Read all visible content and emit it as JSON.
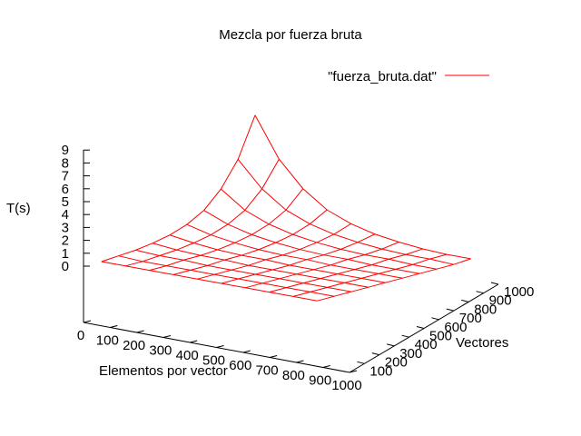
{
  "chart_data": {
    "type": "surface",
    "title": "Mezcla por fuerza bruta",
    "xlabel": "Elementos por vector",
    "ylabel": "Vectores",
    "zlabel": "T(s)",
    "legend_position": "top-right",
    "series": [
      {
        "name": "\"fuerza_bruta.dat\"",
        "color": "#ff0000"
      }
    ],
    "x_ticks": [
      "0",
      "100",
      "200",
      "300",
      "400",
      "500",
      "600",
      "700",
      "800",
      "900",
      "1000"
    ],
    "y_ticks": [
      "100",
      "200",
      "300",
      "400",
      "500",
      "600",
      "700",
      "800",
      "900",
      "1000"
    ],
    "z_ticks": [
      "0",
      "1",
      "2",
      "3",
      "4",
      "5",
      "6",
      "7",
      "8",
      "9"
    ],
    "xlim": [
      0,
      1000
    ],
    "ylim": [
      100,
      1000
    ],
    "zlim": [
      0,
      9
    ],
    "grid": false,
    "x": [
      100,
      200,
      300,
      400,
      500,
      600,
      700,
      800,
      900,
      1000
    ],
    "y": [
      100,
      200,
      300,
      400,
      500,
      600,
      700,
      800,
      900,
      1000
    ],
    "z": [
      [
        0.0,
        0.0,
        0.0,
        0.0,
        0.0,
        0.0,
        0.0,
        0.0,
        0.0,
        0.0
      ],
      [
        0.0,
        0.0,
        0.0,
        0.0,
        0.0,
        0.0,
        0.0,
        0.0,
        0.0,
        0.1
      ],
      [
        0.0,
        0.0,
        0.0,
        0.0,
        0.0,
        0.0,
        0.0,
        0.1,
        0.1,
        0.2
      ],
      [
        0.0,
        0.0,
        0.0,
        0.0,
        0.0,
        0.0,
        0.1,
        0.1,
        0.2,
        0.4
      ],
      [
        0.0,
        0.0,
        0.0,
        0.0,
        0.0,
        0.1,
        0.1,
        0.2,
        0.4,
        0.7
      ],
      [
        0.0,
        0.0,
        0.0,
        0.0,
        0.1,
        0.1,
        0.2,
        0.4,
        0.7,
        1.2
      ],
      [
        0.0,
        0.0,
        0.0,
        0.1,
        0.1,
        0.2,
        0.4,
        0.7,
        1.2,
        2.0
      ],
      [
        0.0,
        0.0,
        0.1,
        0.1,
        0.2,
        0.4,
        0.7,
        1.2,
        2.0,
        3.4
      ],
      [
        0.0,
        0.1,
        0.1,
        0.2,
        0.4,
        0.7,
        1.2,
        2.0,
        3.4,
        5.5
      ],
      [
        0.1,
        0.1,
        0.2,
        0.4,
        0.7,
        1.2,
        2.0,
        3.4,
        5.5,
        8.8
      ]
    ]
  }
}
